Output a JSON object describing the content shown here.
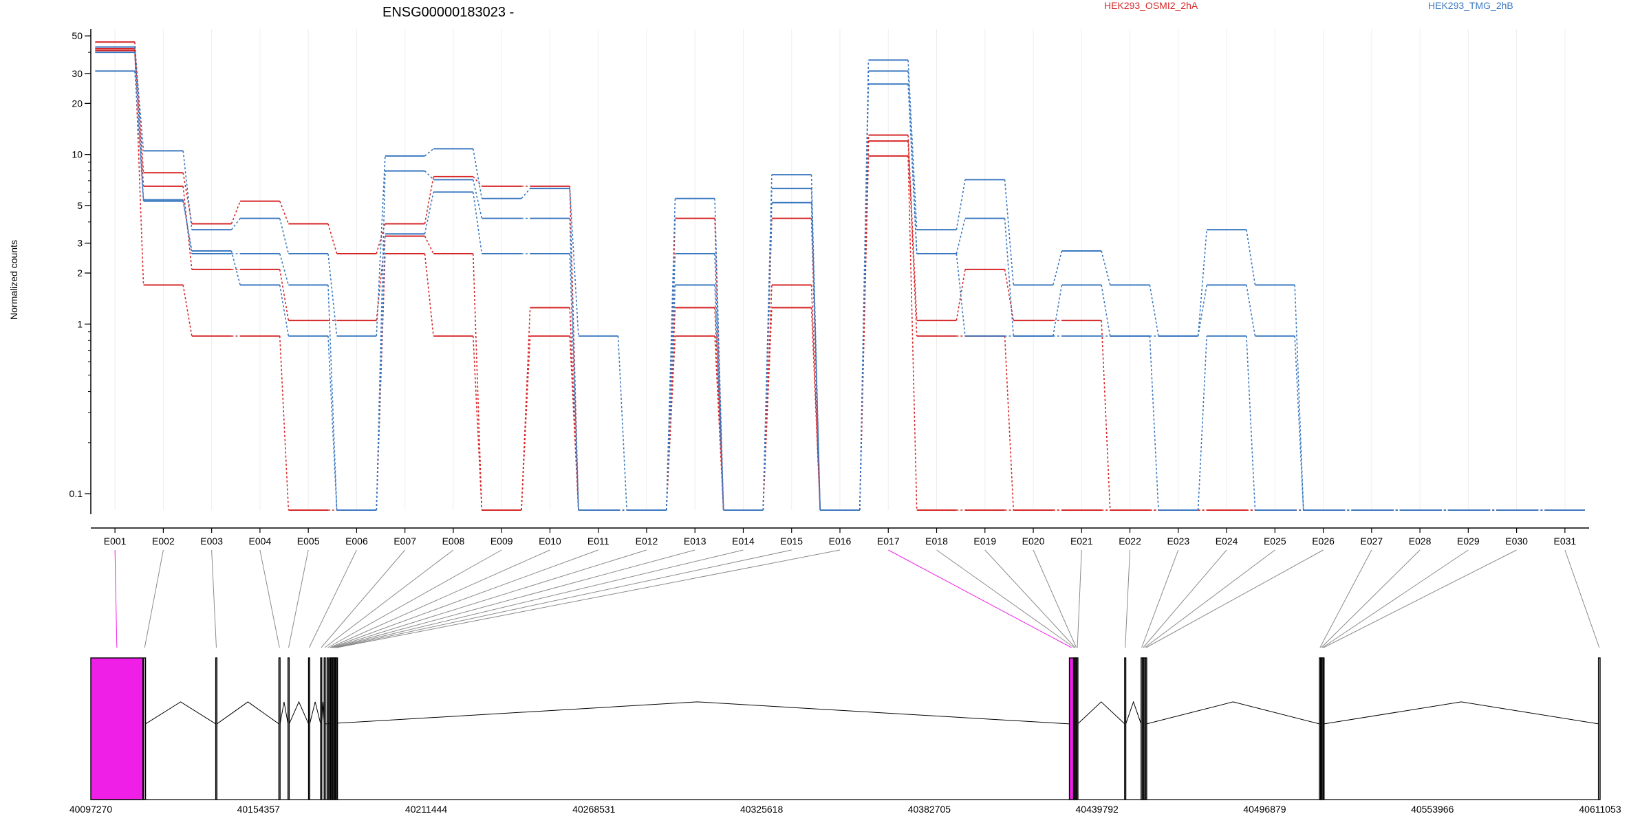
{
  "chart_data": {
    "type": "line",
    "title": "ENSG00000183023 -",
    "ylabel": "Normalized counts",
    "yscale": "log",
    "ylim": [
      0.08,
      55
    ],
    "yticks": [
      0.1,
      1,
      2,
      3,
      5,
      10,
      20,
      30,
      50
    ],
    "ytick_labels": [
      "0.1",
      "1",
      "2",
      "3",
      "5",
      "10",
      "20",
      "30",
      "50"
    ],
    "grid": "vertical",
    "legend_placement": "top",
    "categories": [
      "E001",
      "E002",
      "E003",
      "E004",
      "E005",
      "E006",
      "E007",
      "E008",
      "E009",
      "E010",
      "E011",
      "E012",
      "E013",
      "E014",
      "E015",
      "E016",
      "E017",
      "E018",
      "E019",
      "E020",
      "E021",
      "E022",
      "E023",
      "E024",
      "E025",
      "E026",
      "E027",
      "E028",
      "E029",
      "E030",
      "E031"
    ],
    "group_colors": {
      "HEK293_OSMI2_2hA": "#d62728",
      "HEK293_TMG_2hB": "#3a78c0"
    },
    "legend": [
      {
        "name": "HEK293_OSMI2_2hA",
        "color": "#d62728"
      },
      {
        "name": "HEK293_TMG_2hB",
        "color": "#3a78c0"
      }
    ],
    "series": [
      {
        "group": "HEK293_OSMI2_2hA",
        "values": [
          46,
          7.8,
          3.9,
          5.3,
          3.9,
          2.6,
          3.9,
          7.4,
          6.5,
          6.5,
          0.07,
          0.07,
          4.2,
          0.07,
          4.2,
          0.07,
          13,
          1.05,
          2.1,
          1.05,
          1.05,
          0.07,
          0.07,
          0.07,
          0.07,
          0.07,
          0.07,
          0.07,
          0.07,
          0.07,
          0.07
        ]
      },
      {
        "group": "HEK293_OSMI2_2hA",
        "values": [
          42,
          6.5,
          2.1,
          2.1,
          1.05,
          1.05,
          3.3,
          2.6,
          0.07,
          1.25,
          0.07,
          0.07,
          1.25,
          0.07,
          1.25,
          0.07,
          12,
          0.85,
          0.85,
          0.07,
          0.07,
          0.07,
          0.07,
          0.07,
          0.07,
          0.07,
          0.07,
          0.07,
          0.07,
          0.07,
          0.07
        ]
      },
      {
        "group": "HEK293_OSMI2_2hA",
        "values": [
          41,
          1.7,
          0.85,
          0.85,
          0.07,
          0.07,
          2.6,
          0.85,
          0.07,
          0.85,
          0.07,
          0.07,
          0.85,
          0.07,
          1.7,
          0.07,
          9.8,
          0.07,
          0.07,
          0.07,
          0.07,
          0.07,
          0.07,
          0.07,
          0.07,
          0.07,
          0.07,
          0.07,
          0.07,
          0.07,
          0.07
        ]
      },
      {
        "group": "HEK293_TMG_2hB",
        "values": [
          43,
          10.5,
          3.6,
          4.2,
          2.6,
          0.85,
          9.8,
          10.8,
          5.5,
          6.3,
          0.85,
          0.07,
          5.5,
          0.07,
          7.6,
          0.07,
          36,
          3.6,
          7.1,
          1.7,
          2.7,
          1.7,
          0.85,
          3.6,
          1.7,
          0.07,
          0.07,
          0.07,
          0.07,
          0.07,
          0.07
        ]
      },
      {
        "group": "HEK293_TMG_2hB",
        "values": [
          40,
          5.4,
          2.6,
          2.6,
          1.7,
          0.07,
          8.0,
          7.1,
          4.2,
          4.2,
          0.07,
          0.07,
          2.6,
          0.07,
          6.3,
          0.07,
          31,
          2.6,
          4.2,
          0.85,
          1.7,
          0.85,
          0.85,
          1.7,
          0.85,
          0.07,
          0.07,
          0.07,
          0.07,
          0.07,
          0.07
        ]
      },
      {
        "group": "HEK293_TMG_2hB",
        "values": [
          31,
          5.3,
          2.7,
          1.7,
          0.85,
          0.07,
          3.4,
          6.0,
          2.6,
          2.6,
          0.07,
          0.07,
          1.7,
          0.07,
          5.2,
          0.07,
          26,
          2.6,
          0.85,
          0.85,
          0.85,
          0.85,
          0.07,
          0.85,
          0.07,
          0.07,
          0.07,
          0.07,
          0.07,
          0.07,
          0.07
        ]
      }
    ],
    "gene_model": {
      "coordinate_ticks": [
        40097270,
        40154357,
        40211444,
        40268531,
        40325618,
        40382705,
        40439792,
        40496879,
        40553966,
        40611053
      ],
      "coordinate_tick_labels": [
        "40097270",
        "40154357",
        "40211444",
        "40268531",
        "40325618",
        "40382705",
        "40439792",
        "40496879",
        "40553966",
        "40611053"
      ],
      "range": [
        40097270,
        40611053
      ],
      "highlight_color": "#f01fe8",
      "exons": [
        {
          "id": "E001",
          "start": 40097270,
          "end": 40115000,
          "highlight": true
        },
        {
          "id": "E002",
          "start": 40115300,
          "end": 40115900
        },
        {
          "id": "E003",
          "start": 40139800,
          "end": 40140200
        },
        {
          "id": "E004",
          "start": 40161300,
          "end": 40161700
        },
        {
          "id": "E005",
          "start": 40164400,
          "end": 40164800
        },
        {
          "id": "E006",
          "start": 40171400,
          "end": 40171800
        },
        {
          "id": "E007",
          "start": 40175500,
          "end": 40175900
        },
        {
          "id": "E008",
          "start": 40176700,
          "end": 40177100
        },
        {
          "id": "E009",
          "start": 40177700,
          "end": 40178100
        },
        {
          "id": "E010",
          "start": 40178500,
          "end": 40178800
        },
        {
          "id": "E011",
          "start": 40178900,
          "end": 40179200
        },
        {
          "id": "E012",
          "start": 40179300,
          "end": 40179600
        },
        {
          "id": "E013",
          "start": 40179700,
          "end": 40180000
        },
        {
          "id": "E014",
          "start": 40180100,
          "end": 40180400
        },
        {
          "id": "E015",
          "start": 40180500,
          "end": 40180800
        },
        {
          "id": "E016",
          "start": 40180900,
          "end": 40181200
        },
        {
          "id": "E017",
          "start": 40430400,
          "end": 40431800,
          "highlight": true
        },
        {
          "id": "E018",
          "start": 40431900,
          "end": 40432200
        },
        {
          "id": "E019",
          "start": 40432250,
          "end": 40432550
        },
        {
          "id": "E020",
          "start": 40432600,
          "end": 40432900
        },
        {
          "id": "E021",
          "start": 40432950,
          "end": 40433250
        },
        {
          "id": "E022",
          "start": 40449200,
          "end": 40449600
        },
        {
          "id": "E023",
          "start": 40454800,
          "end": 40455200
        },
        {
          "id": "E024",
          "start": 40455300,
          "end": 40455700
        },
        {
          "id": "E025",
          "start": 40455800,
          "end": 40456200
        },
        {
          "id": "E026",
          "start": 40456300,
          "end": 40456700
        },
        {
          "id": "E027",
          "start": 40515500,
          "end": 40515900
        },
        {
          "id": "E028",
          "start": 40515950,
          "end": 40516300
        },
        {
          "id": "E029",
          "start": 40516350,
          "end": 40516700
        },
        {
          "id": "E030",
          "start": 40516750,
          "end": 40517100
        },
        {
          "id": "E031",
          "start": 40610500,
          "end": 40611053
        }
      ],
      "introns": [
        [
          40115900,
          40139800
        ],
        [
          40140200,
          40161300
        ],
        [
          40161700,
          40164400
        ],
        [
          40164800,
          40171400
        ],
        [
          40171800,
          40175500
        ],
        [
          40175900,
          40176700
        ],
        [
          40177100,
          40430400
        ],
        [
          40433250,
          40449200
        ],
        [
          40449600,
          40454800
        ],
        [
          40456700,
          40515500
        ],
        [
          40517100,
          40610500
        ]
      ]
    }
  }
}
